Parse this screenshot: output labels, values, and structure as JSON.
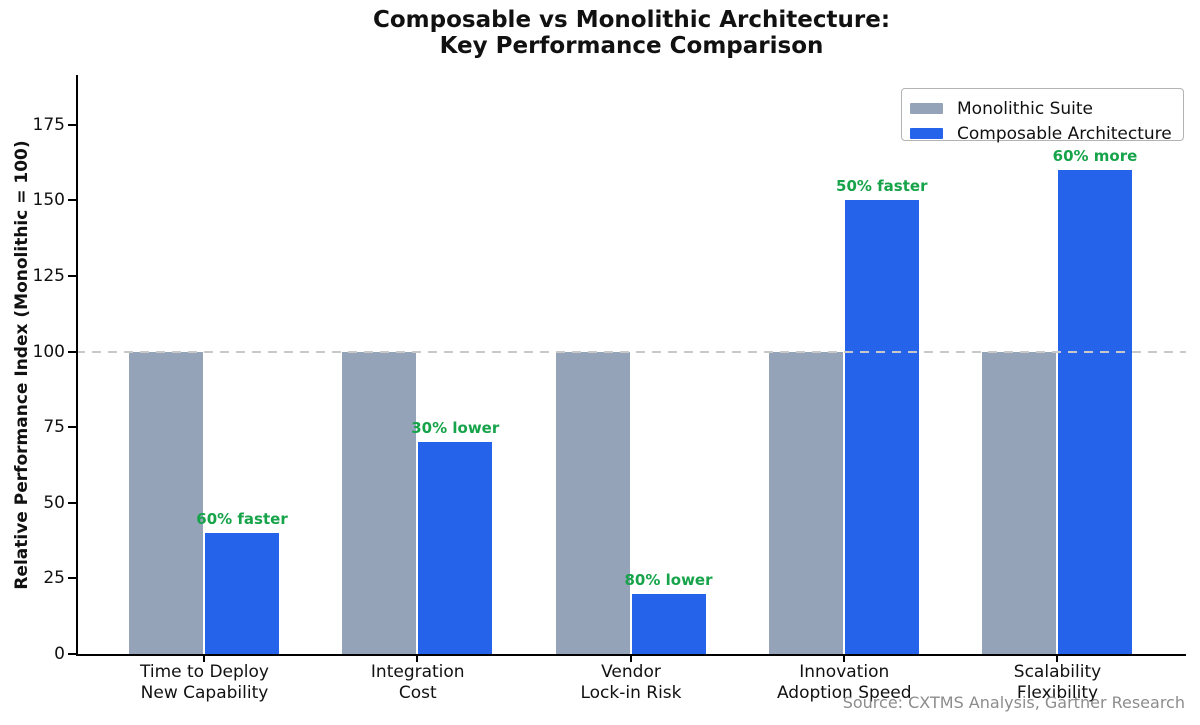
{
  "title": {
    "line1": "Composable vs Monolithic Architecture:",
    "line2": "Key Performance Comparison"
  },
  "source_note": "Source: CXTMS Analysis, Gartner Research",
  "colors": {
    "monolithic_bar": "#94a3b8",
    "composable_bar": "#2563eb",
    "annotation_green": "#16a34a",
    "reference_dash": "#c9c9c9",
    "axis": "#000000",
    "source_text": "#8c8c8c"
  },
  "chart_data": {
    "type": "bar",
    "title": "Composable vs Monolithic Architecture: Key Performance Comparison",
    "categories": [
      "Time to Deploy\nNew Capability",
      "Integration\nCost",
      "Vendor\nLock-in Risk",
      "Innovation\nAdoption Speed",
      "Scalability\nFlexibility"
    ],
    "series": [
      {
        "name": "Monolithic Suite",
        "values": [
          100,
          100,
          100,
          100,
          100
        ],
        "color_key": "monolithic_bar"
      },
      {
        "name": "Composable Architecture",
        "values": [
          40,
          70,
          20,
          150,
          160
        ],
        "color_key": "composable_bar"
      }
    ],
    "annotations": [
      {
        "category_index": 0,
        "value": 40,
        "text": "60% faster"
      },
      {
        "category_index": 1,
        "value": 70,
        "text": "30% lower"
      },
      {
        "category_index": 2,
        "value": 20,
        "text": "80% lower"
      },
      {
        "category_index": 3,
        "value": 150,
        "text": "50% faster"
      },
      {
        "category_index": 4,
        "value": 160,
        "text": "60% more"
      }
    ],
    "ylabel": "Relative Performance Index (Monolithic = 100)",
    "xlabel": "",
    "yticks": [
      0,
      25,
      50,
      75,
      100,
      125,
      150,
      175
    ],
    "ylim": [
      0,
      191.5
    ],
    "reference_line": 100,
    "grid": false,
    "legend_position": "upper right"
  }
}
